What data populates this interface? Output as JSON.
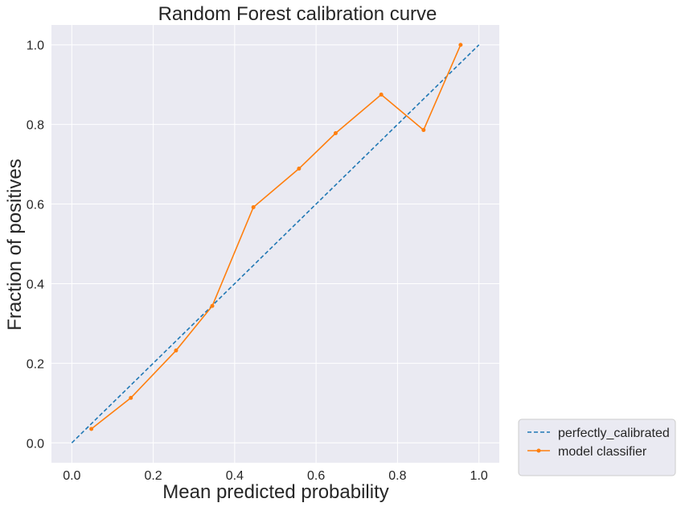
{
  "chart_data": {
    "type": "line",
    "title": "Random Forest calibration curve",
    "xlabel": "Mean predicted probability",
    "ylabel": "Fraction of positives",
    "xlim": [
      -0.05,
      1.05
    ],
    "ylim": [
      -0.05,
      1.05
    ],
    "x_ticks": [
      0.0,
      0.2,
      0.4,
      0.6,
      0.8,
      1.0
    ],
    "y_ticks": [
      0.0,
      0.2,
      0.4,
      0.6,
      0.8,
      1.0
    ],
    "x_tick_labels": [
      "0.0",
      "0.2",
      "0.4",
      "0.6",
      "0.8",
      "1.0"
    ],
    "y_tick_labels": [
      "0.0",
      "0.2",
      "0.4",
      "0.6",
      "0.8",
      "1.0"
    ],
    "grid": true,
    "legend_position": "outside-bottom-right",
    "series": [
      {
        "name": "perfectly_calibrated",
        "style": "dashed",
        "color": "#1f77b4",
        "x": [
          0.0,
          1.0
        ],
        "y": [
          0.0,
          1.0
        ]
      },
      {
        "name": "model classifier",
        "style": "solid-with-markers",
        "color": "#ff7f0e",
        "x": [
          0.048,
          0.145,
          0.256,
          0.345,
          0.446,
          0.558,
          0.648,
          0.76,
          0.864,
          0.955
        ],
        "y": [
          0.035,
          0.113,
          0.232,
          0.344,
          0.592,
          0.689,
          0.778,
          0.875,
          0.786,
          1.0
        ]
      }
    ]
  },
  "colors": {
    "plot_background": "#eaeaf2",
    "grid": "#ffffff",
    "text": "#262626"
  }
}
